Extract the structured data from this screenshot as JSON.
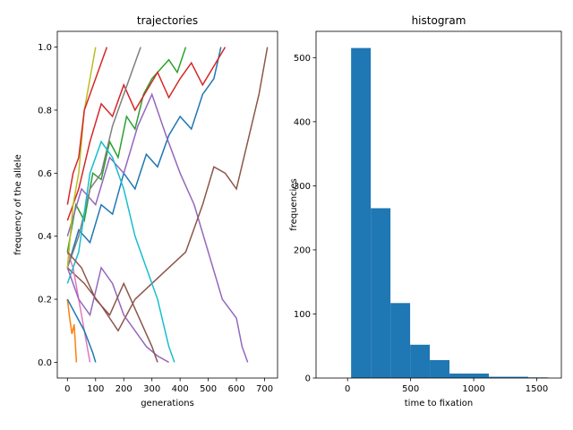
{
  "chart_data": [
    {
      "type": "line",
      "title": "trajectories",
      "xlabel": "generations",
      "ylabel": "frequency of the allele",
      "xlim": [
        -36,
        746
      ],
      "ylim": [
        -0.05,
        1.05
      ],
      "xticks": [
        0,
        100,
        200,
        300,
        400,
        500,
        600,
        700
      ],
      "yticks": [
        {
          "value": 0,
          "label": "0.0"
        },
        {
          "value": 0.2,
          "label": "0.2"
        },
        {
          "value": 0.4,
          "label": "0.4"
        },
        {
          "value": 0.6,
          "label": "0.6"
        },
        {
          "value": 0.8,
          "label": "0.8"
        },
        {
          "value": 1,
          "label": "1.0"
        }
      ],
      "series": [
        {
          "color": "#1f77b4",
          "x": [
            0,
            40,
            80,
            120,
            160,
            200,
            240,
            280,
            320,
            360,
            400,
            440,
            480,
            520,
            545
          ],
          "values": [
            0.3,
            0.42,
            0.38,
            0.5,
            0.47,
            0.6,
            0.55,
            0.66,
            0.62,
            0.72,
            0.78,
            0.74,
            0.85,
            0.9,
            1.0
          ]
        },
        {
          "color": "#ff7f0e",
          "x": [
            0,
            8,
            16,
            24,
            32
          ],
          "values": [
            0.2,
            0.14,
            0.09,
            0.12,
            0.0
          ]
        },
        {
          "color": "#2ca02c",
          "x": [
            0,
            30,
            60,
            90,
            120,
            150,
            180,
            210,
            240,
            270,
            300,
            330,
            360,
            390,
            420
          ],
          "values": [
            0.35,
            0.5,
            0.45,
            0.6,
            0.58,
            0.7,
            0.65,
            0.78,
            0.74,
            0.85,
            0.9,
            0.93,
            0.96,
            0.92,
            1.0
          ]
        },
        {
          "color": "#d62728",
          "x": [
            0,
            40,
            80,
            120,
            160,
            200,
            240,
            280,
            320,
            360,
            400,
            440,
            480,
            520,
            560
          ],
          "values": [
            0.45,
            0.55,
            0.7,
            0.82,
            0.78,
            0.88,
            0.8,
            0.86,
            0.92,
            0.84,
            0.9,
            0.95,
            0.88,
            0.94,
            1.0
          ]
        },
        {
          "color": "#9467bd",
          "x": [
            0,
            50,
            100,
            150,
            200,
            250,
            300,
            350,
            400,
            450,
            500,
            550,
            600,
            620,
            640
          ],
          "values": [
            0.4,
            0.55,
            0.5,
            0.65,
            0.6,
            0.75,
            0.85,
            0.72,
            0.6,
            0.5,
            0.35,
            0.2,
            0.14,
            0.05,
            0.0
          ]
        },
        {
          "color": "#8c564b",
          "x": [
            0,
            60,
            120,
            180,
            240,
            300,
            360,
            420,
            480,
            520,
            560,
            600,
            640,
            680,
            710
          ],
          "values": [
            0.3,
            0.25,
            0.18,
            0.1,
            0.2,
            0.25,
            0.3,
            0.35,
            0.5,
            0.62,
            0.6,
            0.55,
            0.7,
            0.85,
            1.0
          ]
        },
        {
          "color": "#e377c2",
          "x": [
            0,
            20,
            40,
            60,
            80
          ],
          "values": [
            0.35,
            0.3,
            0.2,
            0.1,
            0.0
          ]
        },
        {
          "color": "#7f7f7f",
          "x": [
            0,
            40,
            80,
            120,
            160,
            200,
            240,
            260
          ],
          "values": [
            0.3,
            0.4,
            0.55,
            0.6,
            0.75,
            0.85,
            0.95,
            1.0
          ]
        },
        {
          "color": "#bcbd22",
          "x": [
            0,
            20,
            40,
            60,
            80,
            100
          ],
          "values": [
            0.3,
            0.5,
            0.6,
            0.8,
            0.9,
            1.0
          ]
        },
        {
          "color": "#17becf",
          "x": [
            0,
            40,
            80,
            120,
            160,
            200,
            240,
            280,
            320,
            360,
            380
          ],
          "values": [
            0.25,
            0.35,
            0.6,
            0.7,
            0.65,
            0.55,
            0.4,
            0.3,
            0.2,
            0.05,
            0.0
          ]
        },
        {
          "color": "#1f77b4",
          "x": [
            0,
            30,
            60,
            90,
            100
          ],
          "values": [
            0.2,
            0.15,
            0.1,
            0.03,
            0.0
          ]
        },
        {
          "color": "#9467bd",
          "x": [
            0,
            40,
            80,
            120,
            160,
            200,
            240,
            280,
            320,
            360
          ],
          "values": [
            0.3,
            0.2,
            0.15,
            0.3,
            0.25,
            0.15,
            0.1,
            0.05,
            0.02,
            0.0
          ]
        },
        {
          "color": "#d62728",
          "x": [
            0,
            20,
            40,
            60,
            80,
            100,
            120,
            140
          ],
          "values": [
            0.5,
            0.6,
            0.65,
            0.8,
            0.85,
            0.9,
            0.95,
            1.0
          ]
        },
        {
          "color": "#8c564b",
          "x": [
            0,
            50,
            100,
            150,
            200,
            250,
            300,
            320
          ],
          "values": [
            0.35,
            0.3,
            0.2,
            0.15,
            0.25,
            0.15,
            0.05,
            0.0
          ]
        }
      ]
    },
    {
      "type": "histogram",
      "title": "histogram",
      "xlabel": "time to fixation",
      "ylabel": "frequencies",
      "xlim": [
        -250,
        1695
      ],
      "ylim": [
        0,
        541
      ],
      "xticks": [
        0,
        500,
        1000,
        1500
      ],
      "yticks": [
        0,
        100,
        200,
        300,
        400,
        500
      ],
      "color": "#1f77b4",
      "bins": [
        28,
        184,
        340,
        496,
        652,
        808,
        964,
        1120,
        1276,
        1432,
        1588
      ],
      "counts": [
        515,
        265,
        117,
        52,
        28,
        7,
        7,
        2,
        2,
        1
      ]
    }
  ]
}
